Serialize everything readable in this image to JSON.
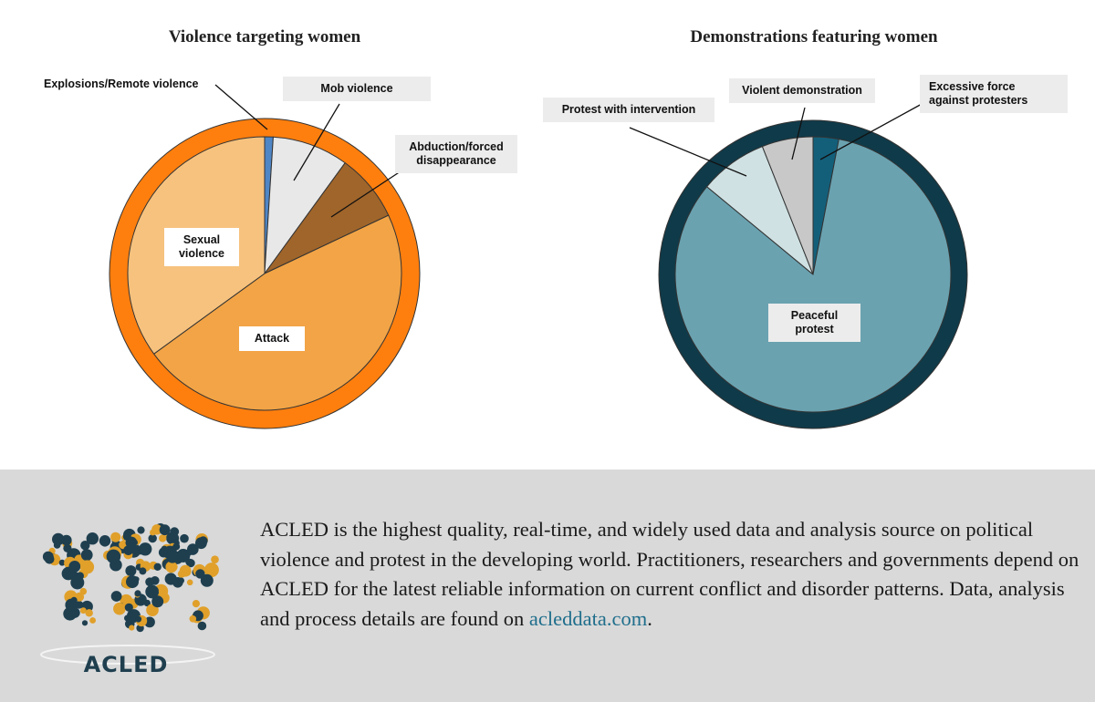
{
  "chart_data": [
    {
      "type": "pie",
      "title": "Violence targeting women",
      "ring_color": "#ff7f0e",
      "slices": [
        {
          "label": "Explosions/Remote violence",
          "value": 1,
          "color": "#4f86c6"
        },
        {
          "label": "Mob violence",
          "value": 9,
          "color": "#e8e8e8"
        },
        {
          "label": "Abduction/forced\ndisappearance",
          "value": 8,
          "color": "#a0652a"
        },
        {
          "label": "Attack",
          "value": 47,
          "color": "#f2a446"
        },
        {
          "label": "Sexual\nviolence",
          "value": 35,
          "color": "#f6c27e"
        }
      ]
    },
    {
      "type": "pie",
      "title": "Demonstrations featuring women",
      "ring_color": "#0f3a49",
      "slices": [
        {
          "label": "Excessive force\nagainst protesters",
          "value": 3,
          "color": "#135f7a"
        },
        {
          "label": "Peaceful\nprotest",
          "value": 83,
          "color": "#6aa2b0"
        },
        {
          "label": "Protest with intervention",
          "value": 8,
          "color": "#cfe1e3"
        },
        {
          "label": "Violent demonstration",
          "value": 6,
          "color": "#c8c8c8"
        }
      ]
    }
  ],
  "footer": {
    "logo_text": "ACLED",
    "blurb": "ACLED is the highest quality, real-time, and widely used data and analysis source on political violence and protest in the developing world. Practitioners, researchers and governments depend on ACLED for the latest reliable information on current conflict and disorder patterns. Data, analysis and process details are found on ",
    "link": "acleddata.com",
    "link_suffix": "."
  },
  "colors": {
    "footer_bg": "#d9d9d9",
    "logo_navy": "#1f3f4f",
    "logo_gold": "#e0a02a",
    "link": "#1f6e8c"
  }
}
